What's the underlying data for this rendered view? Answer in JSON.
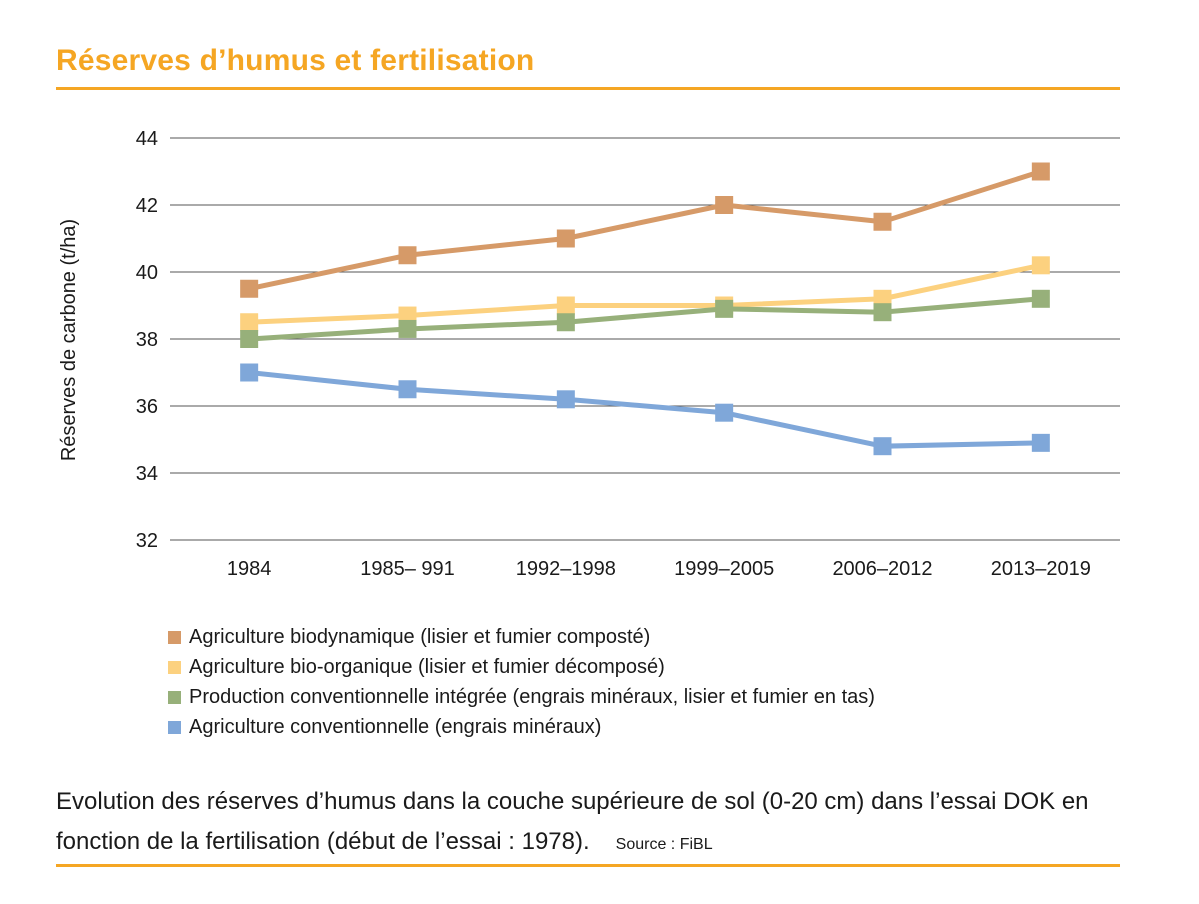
{
  "header": {
    "title": "Réserves d’humus et fertilisation"
  },
  "colors": {
    "accent": "#F5A623",
    "gridline": "#555555"
  },
  "chart_data": {
    "type": "line",
    "ylabel": "Réserves de carbone (t/ha)",
    "xlabel": "",
    "ylim": [
      32,
      44
    ],
    "yticks": [
      32,
      34,
      36,
      38,
      40,
      42,
      44
    ],
    "grid": true,
    "legend_position": "bottom",
    "categories": [
      "1984",
      "1985– 991",
      "1992–1998",
      "1999–2005",
      "2006–2012",
      "2013–2019"
    ],
    "series": [
      {
        "name": "Agriculture biodynamique (lisier et fumier composté)",
        "color": "#D69A68",
        "values": [
          39.5,
          40.5,
          41.0,
          42.0,
          41.5,
          43.0
        ]
      },
      {
        "name": "Agriculture bio-organique (lisier et fumier décomposé)",
        "color": "#FCD17F",
        "values": [
          38.5,
          38.7,
          39.0,
          39.0,
          39.2,
          40.2
        ]
      },
      {
        "name": "Production conventionnelle intégrée (engrais minéraux, lisier et fumier en tas)",
        "color": "#97B07A",
        "values": [
          38.0,
          38.3,
          38.5,
          38.9,
          38.8,
          39.2
        ]
      },
      {
        "name": "Agriculture conventionnelle (engrais minéraux)",
        "color": "#7FA7D9",
        "values": [
          37.0,
          36.5,
          36.2,
          35.8,
          34.8,
          34.9
        ]
      }
    ]
  },
  "caption": {
    "text": "Evolution des réserves d’humus dans la couche supérieure de sol (0-20 cm) dans l’essai DOK en fonction de la fertilisation (début de l’essai : 1978).",
    "source": "Source : FiBL"
  }
}
